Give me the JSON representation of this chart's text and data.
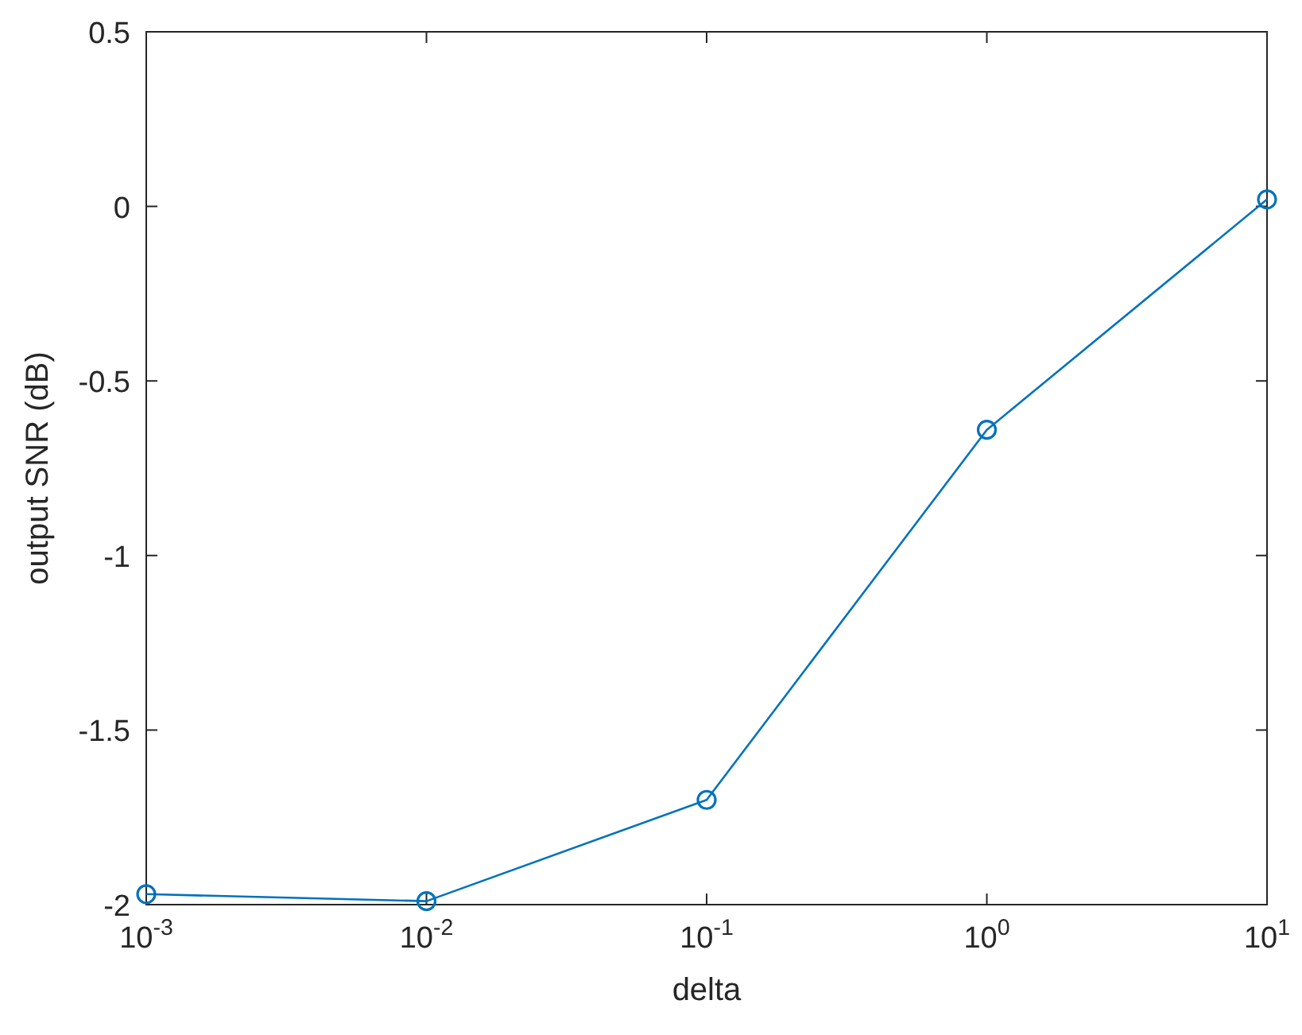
{
  "chart_data": {
    "type": "line",
    "xlabel": "delta",
    "ylabel": "output SNR (dB)",
    "log": "x",
    "marker": "circle",
    "line_style": "solid",
    "grid": false,
    "x": [
      0.001,
      0.01,
      0.1,
      1,
      10
    ],
    "series": [
      {
        "color": "#0072bd",
        "values": [
          -1.97,
          -1.99,
          -1.7,
          -0.64,
          0.02
        ]
      }
    ],
    "xlim": [
      0.001,
      10
    ],
    "xticks": [
      {
        "value": 0.001,
        "label": "10$^{-3}$"
      },
      {
        "value": 0.01,
        "label": "10$^{-2}$"
      },
      {
        "value": 0.1,
        "label": "10$^{-1}$"
      },
      {
        "value": 1,
        "label": "10$^{0}$"
      },
      {
        "value": 10,
        "label": "10$^{1}$"
      }
    ],
    "ylim": [
      -2,
      0.5
    ],
    "yticks": [
      -2,
      -1.5,
      -1,
      -0.5,
      0,
      0.5
    ]
  }
}
